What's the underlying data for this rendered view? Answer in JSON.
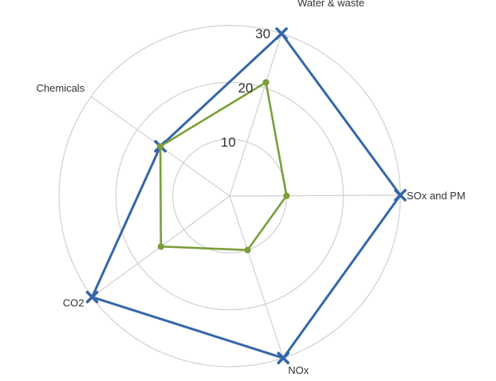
{
  "chart_data": {
    "type": "radar",
    "title": "",
    "categories": [
      "Water & waste",
      "SOx and PM",
      "NOx",
      "CO2",
      "Chemicals"
    ],
    "series": [
      {
        "values": [
          30,
          30,
          30,
          30,
          15
        ],
        "color": "#3566a8",
        "marker": "x"
      },
      {
        "values": [
          21,
          10,
          10,
          15,
          15
        ],
        "color": "#7a9e3a",
        "marker": "circle"
      }
    ],
    "r_ticks": [
      10,
      20,
      30
    ],
    "r_range": [
      0,
      30
    ],
    "grid": true,
    "legend": "none"
  }
}
